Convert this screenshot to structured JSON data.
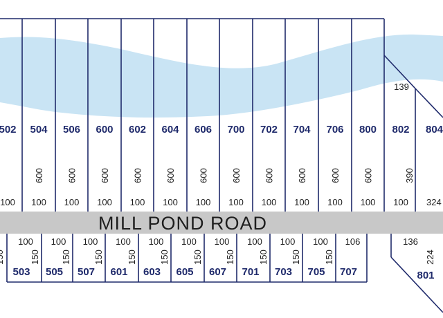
{
  "map": {
    "colors": {
      "lot_line": "#1f2a6b",
      "lot_number": "#1f2a6b",
      "dimension_text": "#1e1e1e",
      "road_fill": "#c8c8c8",
      "water": "#c9e4f4"
    },
    "road": {
      "name": "MILL POND ROAD"
    },
    "north_lots": [
      {
        "number": "502",
        "depth": "",
        "frontage": "100"
      },
      {
        "number": "504",
        "depth": "600",
        "frontage": "100"
      },
      {
        "number": "506",
        "depth": "600",
        "frontage": "100"
      },
      {
        "number": "600",
        "depth": "600",
        "frontage": "100"
      },
      {
        "number": "602",
        "depth": "600",
        "frontage": "100"
      },
      {
        "number": "604",
        "depth": "600",
        "frontage": "100"
      },
      {
        "number": "606",
        "depth": "600",
        "frontage": "100"
      },
      {
        "number": "700",
        "depth": "600",
        "frontage": "100"
      },
      {
        "number": "702",
        "depth": "600",
        "frontage": "100"
      },
      {
        "number": "704",
        "depth": "600",
        "frontage": "100"
      },
      {
        "number": "706",
        "depth": "600",
        "frontage": "100"
      },
      {
        "number": "800",
        "depth": "600",
        "frontage": "100"
      }
    ],
    "north_lot_802": {
      "number": "802",
      "depth": "390",
      "frontage": "100",
      "rear": "139"
    },
    "north_lot_804": {
      "number": "804",
      "frontage": "324"
    },
    "south_lots": [
      {
        "number": "503",
        "frontage": "100",
        "depth": "150"
      },
      {
        "number": "505",
        "frontage": "100",
        "depth": "150"
      },
      {
        "number": "507",
        "frontage": "100",
        "depth": "150"
      },
      {
        "number": "601",
        "frontage": "100",
        "depth": "150"
      },
      {
        "number": "603",
        "frontage": "100",
        "depth": "150"
      },
      {
        "number": "605",
        "frontage": "100",
        "depth": "150"
      },
      {
        "number": "607",
        "frontage": "100",
        "depth": "150"
      },
      {
        "number": "701",
        "frontage": "100",
        "depth": "150"
      },
      {
        "number": "703",
        "frontage": "100",
        "depth": "150"
      },
      {
        "number": "705",
        "frontage": "100",
        "depth": "150"
      },
      {
        "number": "707",
        "frontage": "106",
        "depth": ""
      }
    ],
    "south_lot_first_depth": "150",
    "south_lot_801": {
      "number": "801",
      "frontage": "136",
      "depth": "224"
    }
  }
}
